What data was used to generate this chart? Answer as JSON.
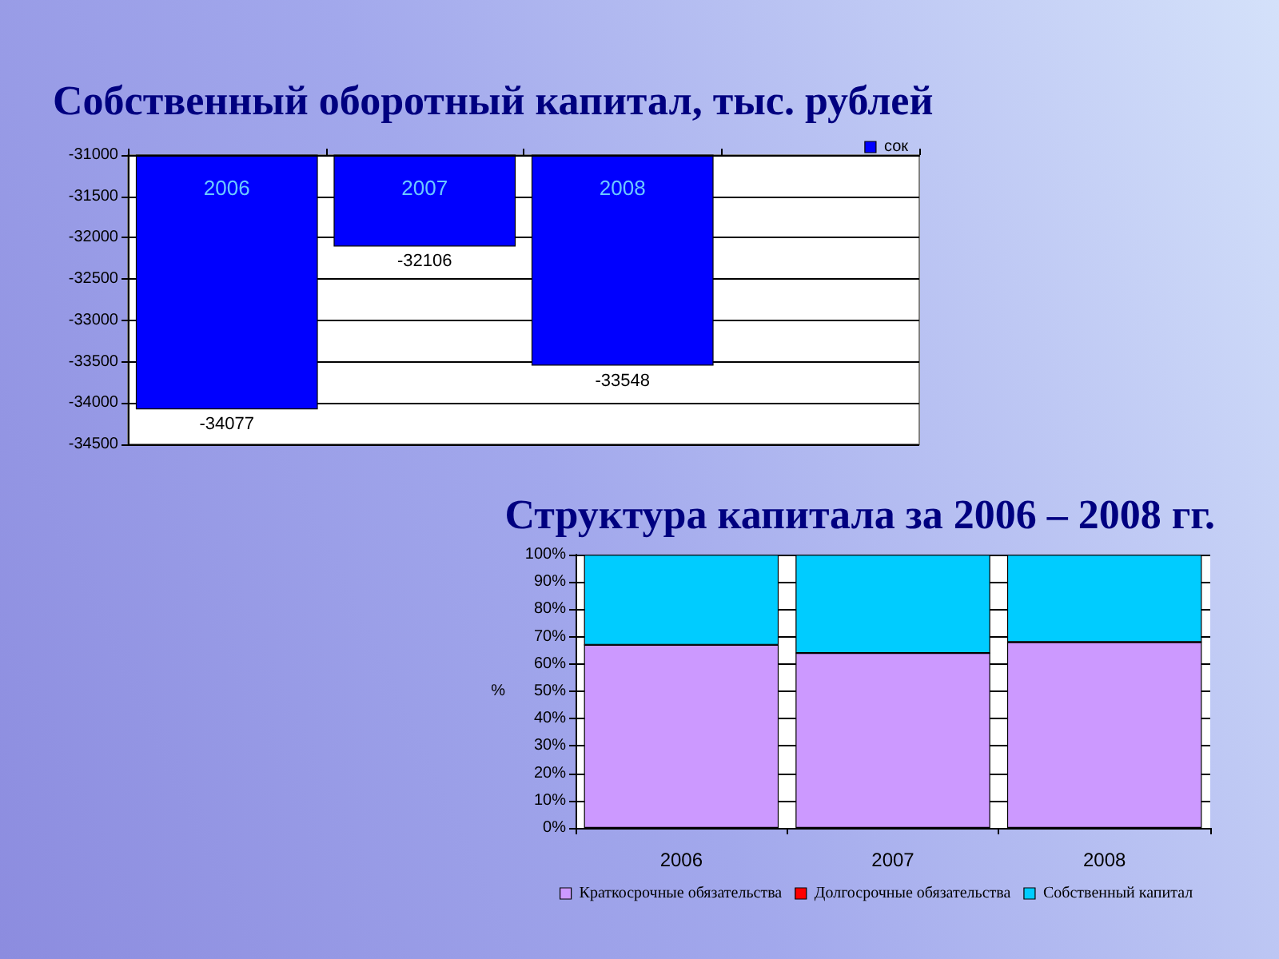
{
  "chart_data": [
    {
      "type": "bar",
      "title": "Собственный оборотный капитал, тыс. рублей",
      "categories": [
        "2006",
        "2007",
        "2008",
        null
      ],
      "series": [
        {
          "name": "сок",
          "color": "#0000ff",
          "values": [
            -34077,
            -32106,
            -33548,
            null
          ]
        }
      ],
      "ylim": [
        -34500,
        -31000
      ],
      "yticks": [
        -34500,
        -34000,
        -33500,
        -33000,
        -32500,
        -32000,
        -31500,
        -31000
      ],
      "grid": "y",
      "legend": "top right",
      "data_labels": true
    },
    {
      "type": "bar",
      "title": "Структура капитала за 2006 – 2008 гг.",
      "ylabel": "%",
      "categories": [
        "2006",
        "2007",
        "2008"
      ],
      "series": [
        {
          "name": "Краткосрочные обязательства",
          "color": "#cc99ff",
          "values": [
            67,
            64,
            68
          ]
        },
        {
          "name": "Долгосрочные обязательства",
          "color": "#ff0000",
          "values": [
            0,
            0,
            0
          ]
        },
        {
          "name": "Собственный капитал",
          "color": "#00ccff",
          "values": [
            33,
            36,
            32
          ]
        }
      ],
      "stacked": true,
      "ylim": [
        0,
        100
      ],
      "yticks": [
        {
          "value": 0,
          "label": "0%"
        },
        {
          "value": 10,
          "label": "10%"
        },
        {
          "value": 20,
          "label": "20%"
        },
        {
          "value": 30,
          "label": "30%"
        },
        {
          "value": 40,
          "label": "40%"
        },
        {
          "value": 50,
          "label": "50%"
        },
        {
          "value": 60,
          "label": "60%"
        },
        {
          "value": 70,
          "label": "70%"
        },
        {
          "value": 80,
          "label": "80%"
        },
        {
          "value": 90,
          "label": "90%"
        },
        {
          "value": 100,
          "label": "100%"
        }
      ],
      "grid": "y",
      "legend": "bottom"
    }
  ]
}
